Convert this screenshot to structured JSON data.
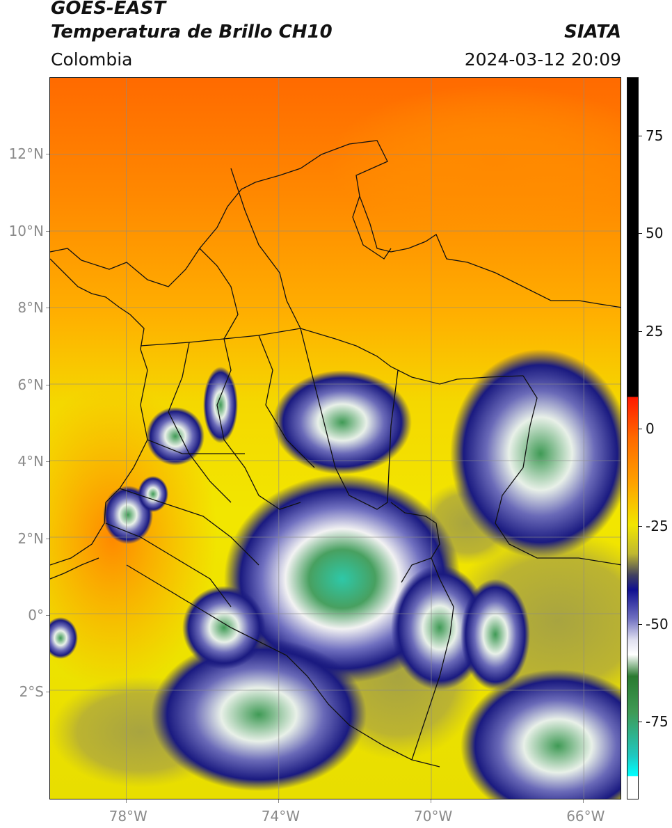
{
  "header": {
    "title_line1": "GOES-EAST",
    "title_line2": "Temperatura de Brillo CH10",
    "brand": "SIATA",
    "region": "Colombia",
    "datetime": "2024-03-12 20:09"
  },
  "map": {
    "lon_range": [
      -80,
      -65
    ],
    "lat_range": [
      -4.8,
      14
    ],
    "lat_ticks": [
      {
        "value": 12,
        "label": "12°N"
      },
      {
        "value": 10,
        "label": "10°N"
      },
      {
        "value": 8,
        "label": "8°N"
      },
      {
        "value": 6,
        "label": "6°N"
      },
      {
        "value": 4,
        "label": "4°N"
      },
      {
        "value": 2,
        "label": "2°N"
      },
      {
        "value": 0,
        "label": "0°"
      },
      {
        "value": -2,
        "label": "2°S"
      }
    ],
    "lon_ticks": [
      {
        "value": -78,
        "label": "78°W"
      },
      {
        "value": -74,
        "label": "74°W"
      },
      {
        "value": -70,
        "label": "70°W"
      },
      {
        "value": -66,
        "label": "66°W"
      }
    ],
    "colors": {
      "warm_top": "#ff6a00",
      "orange": "#ff9a00",
      "yellow": "#f2e600",
      "olive": "#b8b030",
      "navy": "#1a1a80",
      "white": "#f4f4f4",
      "green": "#3f9a55",
      "teal": "#2ed0b8"
    }
  },
  "colorbar": {
    "range": [
      -95,
      90
    ],
    "ticks": [
      {
        "value": 75,
        "label": "75"
      },
      {
        "value": 50,
        "label": "50"
      },
      {
        "value": 25,
        "label": "25"
      },
      {
        "value": 0,
        "label": "0"
      },
      {
        "value": -25,
        "label": "-25"
      },
      {
        "value": -50,
        "label": "-50"
      },
      {
        "value": -75,
        "label": "-75"
      }
    ]
  }
}
